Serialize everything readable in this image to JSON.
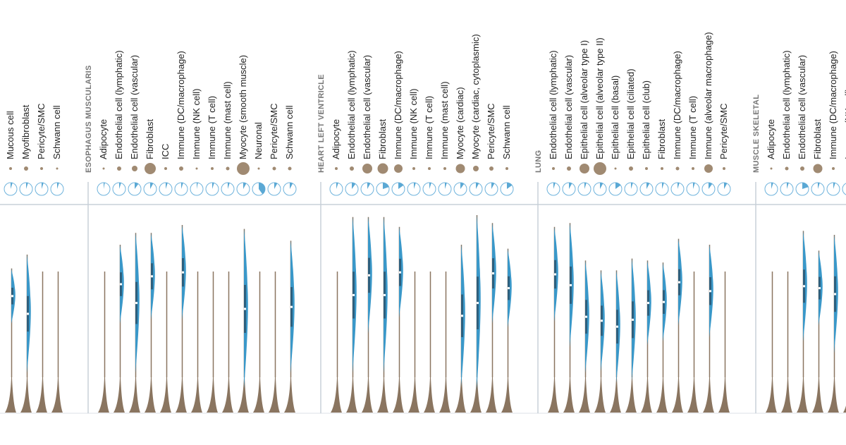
{
  "groups": [
    {
      "cells": [
        {
          "label": "Mucous cell",
          "dot": 2,
          "pie": 5,
          "blue": [
            45,
            73
          ]
        },
        {
          "label": "Myofibroblast",
          "dot": 3,
          "pie": 5,
          "blue": [
            20,
            80
          ]
        },
        {
          "label": "Pericyte/SMC",
          "dot": 2,
          "pie": 5,
          "blue": null
        },
        {
          "label": "Schwann cell",
          "dot": 1.5,
          "pie": 5,
          "blue": null
        }
      ]
    },
    {
      "title": "ESOPHAGUS MUSCULARIS",
      "cells": [
        {
          "label": "Adipocyte",
          "dot": 1.5,
          "pie": 3,
          "blue": null
        },
        {
          "label": "Endothelial cell (lymphatic)",
          "dot": 3,
          "pie": 5,
          "blue": [
            45,
            85
          ]
        },
        {
          "label": "Endothelial cell (vascular)",
          "dot": 4,
          "pie": 10,
          "blue": [
            20,
            91
          ]
        },
        {
          "label": "Fibroblast",
          "dot": 8,
          "pie": 8,
          "blue": [
            47,
            91
          ]
        },
        {
          "label": "ICC",
          "dot": 2,
          "pie": 5,
          "blue": null
        },
        {
          "label": "Immune (DC/macrophage)",
          "dot": 3,
          "pie": 5,
          "blue": [
            47,
            95
          ]
        },
        {
          "label": "Immune (NK cell)",
          "dot": 1.5,
          "pie": 3,
          "blue": null
        },
        {
          "label": "Immune (T cell)",
          "dot": 2,
          "pie": 5,
          "blue": null
        },
        {
          "label": "Immune (mast cell)",
          "dot": 2.5,
          "pie": 5,
          "blue": null
        },
        {
          "label": "Myocyte (smooth muscle)",
          "dot": 9,
          "pie": 8,
          "blue": [
            12,
            93
          ]
        },
        {
          "label": "Neuronal",
          "dot": 1.5,
          "pie": 40,
          "blue": null
        },
        {
          "label": "Pericyte/SMC",
          "dot": 2.5,
          "pie": 8,
          "blue": null
        },
        {
          "label": "Schwann cell",
          "dot": 2.5,
          "pie": 8,
          "blue": [
            20,
            87
          ]
        }
      ]
    },
    {
      "title": "HEART LEFT VENTRICLE",
      "cells": [
        {
          "label": "Adipocyte",
          "dot": 2,
          "pie": 5,
          "blue": null
        },
        {
          "label": "Endothelial cell (lymphatic)",
          "dot": 3,
          "pie": 10,
          "blue": [
            20,
            99
          ]
        },
        {
          "label": "Endothelial cell (vascular)",
          "dot": 7,
          "pie": 8,
          "blue": [
            40,
            99
          ]
        },
        {
          "label": "Fibroblast",
          "dot": 7.5,
          "pie": 20,
          "blue": [
            20,
            99
          ]
        },
        {
          "label": "Immune (DC/macrophage)",
          "dot": 6,
          "pie": 15,
          "blue": [
            48,
            94
          ]
        },
        {
          "label": "Immune (NK cell)",
          "dot": 2,
          "pie": 5,
          "blue": null
        },
        {
          "label": "Immune (T cell)",
          "dot": 2,
          "pie": 5,
          "blue": null
        },
        {
          "label": "Immune (mast cell)",
          "dot": 2,
          "pie": 5,
          "blue": null
        },
        {
          "label": "Myocyte (cardiac)",
          "dot": 6.5,
          "pie": 10,
          "blue": [
            13,
            85
          ]
        },
        {
          "label": "Myocyte (cardiac, cytoplasmic)",
          "dot": 4,
          "pie": 8,
          "blue": [
            11,
            100
          ]
        },
        {
          "label": "Pericyte/SMC",
          "dot": 3,
          "pie": 8,
          "blue": [
            45,
            96
          ]
        },
        {
          "label": "Schwann cell",
          "dot": 2,
          "pie": 15,
          "blue": [
            43,
            83
          ]
        }
      ]
    },
    {
      "title": "LUNG",
      "cells": [
        {
          "label": "Endothelial cell (lymphatic)",
          "dot": 2,
          "pie": 5,
          "blue": [
            46,
            94
          ]
        },
        {
          "label": "Endothelial cell (vascular)",
          "dot": 3,
          "pie": 8,
          "blue": [
            33,
            96
          ]
        },
        {
          "label": "Epithelial cell (alveolar type I)",
          "dot": 7,
          "pie": 5,
          "blue": [
            20,
            77
          ]
        },
        {
          "label": "Epithelial cell (alveolar type II)",
          "dot": 9,
          "pie": 8,
          "blue": [
            21,
            72
          ]
        },
        {
          "label": "Epithelial cell (basal)",
          "dot": 1.5,
          "pie": 15,
          "blue": [
            15,
            72
          ]
        },
        {
          "label": "Epithelial cell (ciliated)",
          "dot": 3,
          "pie": 5,
          "blue": [
            16,
            78
          ]
        },
        {
          "label": "Epithelial cell (club)",
          "dot": 2,
          "pie": 8,
          "blue": [
            34,
            77
          ]
        },
        {
          "label": "Fibroblast",
          "dot": 2,
          "pie": 5,
          "blue": [
            36,
            76
          ]
        },
        {
          "label": "Immune (DC/macrophage)",
          "dot": 2.5,
          "pie": 5,
          "blue": [
            44,
            88
          ]
        },
        {
          "label": "Immune (T cell)",
          "dot": 2,
          "pie": 5,
          "blue": null
        },
        {
          "label": "Immune (alveolar macrophage)",
          "dot": 6,
          "pie": 10,
          "blue": [
            38,
            85
          ]
        },
        {
          "label": "Pericyte/SMC",
          "dot": 2,
          "pie": 8,
          "blue": null
        }
      ]
    },
    {
      "title": "MUSCLE SKELETAL",
      "cells": [
        {
          "label": "Adipocyte",
          "dot": 1.5,
          "pie": 5,
          "blue": null
        },
        {
          "label": "Endothelial cell (lymphatic)",
          "dot": 2.5,
          "pie": 5,
          "blue": null
        },
        {
          "label": "Endothelial cell (vascular)",
          "dot": 3,
          "pie": 20,
          "blue": [
            36,
            92
          ]
        },
        {
          "label": "Fibroblast",
          "dot": 6.5,
          "pie": 5,
          "blue": [
            44,
            82
          ]
        },
        {
          "label": "Immune (DC/macrophage)",
          "dot": 2,
          "pie": 5,
          "blue": [
            30,
            90
          ]
        },
        {
          "label": "Immune (NK cell)",
          "dot": 2,
          "pie": 5,
          "blue": null
        }
      ]
    }
  ]
}
